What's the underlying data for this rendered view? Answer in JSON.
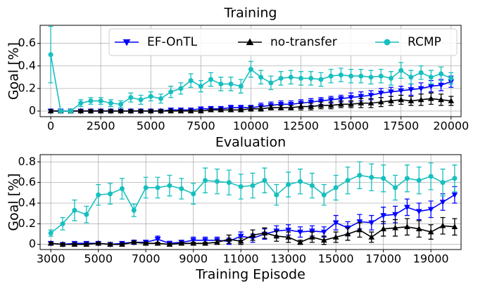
{
  "chart_data": [
    {
      "type": "line",
      "title": "Training",
      "ylabel": "Goal [%]",
      "x": [
        0,
        500,
        1000,
        1500,
        2000,
        2500,
        3000,
        3500,
        4000,
        4500,
        5000,
        5500,
        6000,
        6500,
        7000,
        7500,
        8000,
        8500,
        9000,
        9500,
        10000,
        10500,
        11000,
        11500,
        12000,
        12500,
        13000,
        13500,
        14000,
        14500,
        15000,
        15500,
        16000,
        16500,
        17000,
        17500,
        18000,
        18500,
        19000,
        19500,
        20000
      ],
      "xlim": [
        -530,
        20500
      ],
      "xticks": [
        0,
        2500,
        5000,
        7500,
        10000,
        12500,
        15000,
        17500,
        20000
      ],
      "ylim": [
        -0.05,
        0.76
      ],
      "yticks": [
        0.0,
        0.2,
        0.4,
        0.6
      ],
      "grid": true,
      "legend": "top right",
      "series": [
        {
          "name": "EF-OnTL",
          "color": "#0000ff",
          "marker": "triangle-down",
          "values": [
            0,
            0,
            0,
            0,
            0,
            0,
            0,
            0,
            0,
            0,
            0,
            0,
            0.01,
            0.01,
            0.01,
            0.02,
            0.02,
            0.02,
            0.03,
            0.03,
            0.03,
            0.04,
            0.05,
            0.06,
            0.06,
            0.07,
            0.08,
            0.09,
            0.1,
            0.11,
            0.12,
            0.13,
            0.14,
            0.16,
            0.17,
            0.18,
            0.19,
            0.2,
            0.22,
            0.23,
            0.26
          ],
          "errors": [
            0.01,
            0.01,
            0.01,
            0.01,
            0.01,
            0.01,
            0.01,
            0.01,
            0.01,
            0.01,
            0.01,
            0.01,
            0.01,
            0.01,
            0.01,
            0.01,
            0.02,
            0.02,
            0.02,
            0.02,
            0.02,
            0.03,
            0.03,
            0.03,
            0.03,
            0.03,
            0.03,
            0.03,
            0.03,
            0.03,
            0.04,
            0.04,
            0.04,
            0.04,
            0.04,
            0.04,
            0.05,
            0.05,
            0.05,
            0.05,
            0.05
          ]
        },
        {
          "name": "no-transfer",
          "color": "#000000",
          "marker": "triangle-up",
          "values": [
            0,
            0,
            0,
            0,
            0,
            0,
            0,
            0,
            0,
            0,
            0,
            0,
            0,
            0,
            0,
            0,
            0.01,
            0.01,
            0.01,
            0.01,
            0.02,
            0.02,
            0.03,
            0.03,
            0.03,
            0.04,
            0.04,
            0.05,
            0.05,
            0.06,
            0.06,
            0.07,
            0.07,
            0.08,
            0.09,
            0.1,
            0.09,
            0.1,
            0.11,
            0.1,
            0.09
          ],
          "errors": [
            0.01,
            0.01,
            0.01,
            0.01,
            0.01,
            0.01,
            0.01,
            0.01,
            0.01,
            0.01,
            0.01,
            0.01,
            0.01,
            0.01,
            0.01,
            0.01,
            0.01,
            0.01,
            0.01,
            0.01,
            0.02,
            0.02,
            0.02,
            0.02,
            0.02,
            0.03,
            0.03,
            0.03,
            0.03,
            0.03,
            0.03,
            0.04,
            0.04,
            0.04,
            0.04,
            0.04,
            0.04,
            0.05,
            0.05,
            0.05,
            0.04
          ]
        },
        {
          "name": "RCMP",
          "color": "#17bfbf",
          "marker": "circle",
          "values": [
            0.5,
            0,
            0,
            0.07,
            0.09,
            0.09,
            0.07,
            0.06,
            0.12,
            0.1,
            0.13,
            0.11,
            0.17,
            0.2,
            0.27,
            0.22,
            0.28,
            0.24,
            0.24,
            0.22,
            0.37,
            0.3,
            0.25,
            0.29,
            0.3,
            0.29,
            0.29,
            0.28,
            0.31,
            0.32,
            0.31,
            0.31,
            0.3,
            0.31,
            0.29,
            0.36,
            0.3,
            0.34,
            0.3,
            0.33,
            0.29
          ],
          "errors": [
            0.25,
            0.01,
            0.01,
            0.03,
            0.03,
            0.03,
            0.03,
            0.03,
            0.04,
            0.04,
            0.04,
            0.04,
            0.05,
            0.05,
            0.06,
            0.05,
            0.06,
            0.06,
            0.06,
            0.06,
            0.07,
            0.06,
            0.06,
            0.06,
            0.06,
            0.06,
            0.06,
            0.06,
            0.06,
            0.06,
            0.06,
            0.06,
            0.06,
            0.06,
            0.06,
            0.07,
            0.06,
            0.06,
            0.06,
            0.06,
            0.05
          ]
        }
      ]
    },
    {
      "type": "line",
      "title": "Evaluation",
      "ylabel": "Goal [%]",
      "xlabel": "Training Episode",
      "x": [
        3000,
        3500,
        4000,
        4500,
        5000,
        5500,
        6000,
        6500,
        7000,
        7500,
        8000,
        8500,
        9000,
        9500,
        10000,
        10500,
        11000,
        11500,
        12000,
        12500,
        13000,
        13500,
        14000,
        14500,
        15000,
        15500,
        16000,
        16500,
        17000,
        17500,
        18000,
        18500,
        19000,
        19500,
        20000
      ],
      "xlim": [
        2550,
        20270
      ],
      "xticks": [
        3000,
        5000,
        7000,
        9000,
        11000,
        13000,
        15000,
        17000,
        19000
      ],
      "ylim": [
        -0.05,
        0.87
      ],
      "yticks": [
        0.0,
        0.2,
        0.4,
        0.6,
        0.8
      ],
      "grid": true,
      "series": [
        {
          "name": "EF-OnTL",
          "color": "#0000ff",
          "marker": "triangle-down",
          "values": [
            0.01,
            0,
            0.01,
            0.01,
            0.01,
            0,
            0.01,
            0.02,
            0.02,
            0.05,
            0.01,
            0.02,
            0.04,
            0.04,
            0.04,
            0.03,
            0.08,
            0.06,
            0.1,
            0.13,
            0.14,
            0.12,
            0.13,
            0.12,
            0.21,
            0.16,
            0.22,
            0.21,
            0.28,
            0.29,
            0.36,
            0.32,
            0.34,
            0.41,
            0.48
          ],
          "errors": [
            0.01,
            0.01,
            0.01,
            0.01,
            0.01,
            0.01,
            0.01,
            0.02,
            0.02,
            0.03,
            0.02,
            0.02,
            0.03,
            0.03,
            0.03,
            0.03,
            0.04,
            0.04,
            0.05,
            0.05,
            0.05,
            0.05,
            0.05,
            0.05,
            0.07,
            0.06,
            0.07,
            0.07,
            0.08,
            0.08,
            0.08,
            0.08,
            0.08,
            0.08,
            0.08
          ]
        },
        {
          "name": "no-transfer",
          "color": "#000000",
          "marker": "triangle-up",
          "values": [
            0.01,
            0,
            0,
            0,
            0.01,
            0,
            0,
            0.02,
            0.01,
            0.01,
            0,
            0.01,
            0.01,
            0.01,
            0.02,
            0.05,
            0.03,
            0.09,
            0.11,
            0.08,
            0.07,
            0.02,
            0.07,
            0.04,
            0.07,
            0.1,
            0.14,
            0.07,
            0.15,
            0.16,
            0.17,
            0.15,
            0.12,
            0.18,
            0.17
          ],
          "errors": [
            0.01,
            0.01,
            0.01,
            0.01,
            0.01,
            0.01,
            0.01,
            0.01,
            0.01,
            0.01,
            0.01,
            0.01,
            0.01,
            0.01,
            0.02,
            0.04,
            0.03,
            0.05,
            0.05,
            0.05,
            0.05,
            0.02,
            0.05,
            0.04,
            0.05,
            0.06,
            0.07,
            0.05,
            0.07,
            0.08,
            0.08,
            0.08,
            0.07,
            0.08,
            0.08
          ]
        },
        {
          "name": "RCMP",
          "color": "#17bfbf",
          "marker": "circle",
          "values": [
            0.11,
            0.2,
            0.33,
            0.29,
            0.48,
            0.49,
            0.54,
            0.33,
            0.55,
            0.55,
            0.57,
            0.54,
            0.49,
            0.62,
            0.61,
            0.6,
            0.56,
            0.57,
            0.62,
            0.48,
            0.58,
            0.61,
            0.57,
            0.48,
            0.55,
            0.62,
            0.67,
            0.65,
            0.64,
            0.55,
            0.64,
            0.62,
            0.66,
            0.6,
            0.64
          ],
          "errors": [
            0.03,
            0.06,
            0.1,
            0.08,
            0.1,
            0.1,
            0.1,
            0.06,
            0.1,
            0.1,
            0.1,
            0.1,
            0.1,
            0.12,
            0.12,
            0.12,
            0.12,
            0.12,
            0.12,
            0.1,
            0.12,
            0.12,
            0.12,
            0.1,
            0.12,
            0.13,
            0.13,
            0.13,
            0.13,
            0.12,
            0.13,
            0.13,
            0.13,
            0.13,
            0.13
          ]
        }
      ]
    }
  ]
}
